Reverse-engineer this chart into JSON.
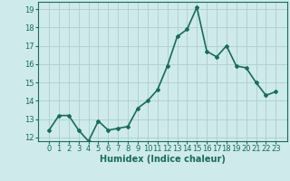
{
  "x": [
    0,
    1,
    2,
    3,
    4,
    5,
    6,
    7,
    8,
    9,
    10,
    11,
    12,
    13,
    14,
    15,
    16,
    17,
    18,
    19,
    20,
    21,
    22,
    23
  ],
  "y": [
    12.4,
    13.2,
    13.2,
    12.4,
    11.8,
    12.9,
    12.4,
    12.5,
    12.6,
    13.6,
    14.0,
    14.6,
    15.9,
    17.5,
    17.9,
    19.1,
    16.7,
    16.4,
    17.0,
    15.9,
    15.8,
    15.0,
    14.3,
    14.5
  ],
  "line_color": "#1a6b5a",
  "marker": "D",
  "marker_size": 2,
  "bg_color": "#ceeaea",
  "grid_color": "#b0cece",
  "xlabel": "Humidex (Indice chaleur)",
  "ylim": [
    11.8,
    19.4
  ],
  "yticks": [
    12,
    13,
    14,
    15,
    16,
    17,
    18,
    19
  ],
  "xtick_labels": [
    "0",
    "1",
    "2",
    "3",
    "4",
    "5",
    "6",
    "7",
    "8",
    "9",
    "10",
    "11",
    "12",
    "13",
    "14",
    "15",
    "16",
    "17",
    "18",
    "19",
    "20",
    "21",
    "22",
    "23"
  ],
  "xlabel_fontsize": 7,
  "tick_fontsize": 6,
  "axis_color": "#1a6b5a",
  "linewidth": 1.2
}
